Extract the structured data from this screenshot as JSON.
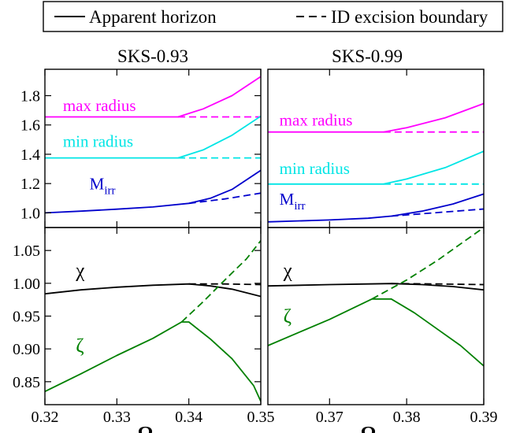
{
  "legend": {
    "solid_label": "Apparent horizon",
    "dashed_label": "ID excision boundary"
  },
  "chart_data": [
    {
      "type": "line",
      "panel": "top-left",
      "title": "SKS-0.93",
      "xlim": [
        0.32,
        0.35
      ],
      "ylim": [
        0.9,
        1.98
      ],
      "yticks": [
        1.0,
        1.2,
        1.4,
        1.6,
        1.8
      ],
      "ytick_labels": [
        "1.0",
        "1.2",
        "1.4",
        "1.6",
        "1.8"
      ],
      "xticks": [
        0.32,
        0.33,
        0.34,
        0.35
      ],
      "grid": false,
      "series": [
        {
          "name": "max radius",
          "color": "#ff00ff",
          "style": "solid",
          "x": [
            0.32,
            0.3385,
            0.342,
            0.346,
            0.35
          ],
          "y": [
            1.655,
            1.655,
            1.71,
            1.8,
            1.93
          ]
        },
        {
          "name": "max radius",
          "color": "#ff00ff",
          "style": "dashed",
          "x": [
            0.3385,
            0.35
          ],
          "y": [
            1.655,
            1.655
          ]
        },
        {
          "name": "min radius",
          "color": "#00e5e5",
          "style": "solid",
          "x": [
            0.32,
            0.3385,
            0.342,
            0.346,
            0.35
          ],
          "y": [
            1.375,
            1.375,
            1.43,
            1.53,
            1.66
          ]
        },
        {
          "name": "min radius",
          "color": "#00e5e5",
          "style": "dashed",
          "x": [
            0.3385,
            0.35
          ],
          "y": [
            1.375,
            1.375
          ]
        },
        {
          "name": "M_irr",
          "color": "#0000cc",
          "style": "solid",
          "x": [
            0.32,
            0.325,
            0.33,
            0.335,
            0.34,
            0.343,
            0.346,
            0.35
          ],
          "y": [
            1.0,
            1.012,
            1.025,
            1.04,
            1.065,
            1.1,
            1.16,
            1.29
          ]
        },
        {
          "name": "M_irr",
          "color": "#0000cc",
          "style": "dashed",
          "x": [
            0.34,
            0.345,
            0.35
          ],
          "y": [
            1.065,
            1.095,
            1.135
          ]
        }
      ],
      "labels": [
        {
          "text": "max radius",
          "color": "#ff00ff",
          "x": 0.3225,
          "y": 1.695
        },
        {
          "text": "min radius",
          "color": "#00e5e5",
          "x": 0.3225,
          "y": 1.45
        },
        {
          "text": "M",
          "sub": "irr",
          "color": "#0000cc",
          "x": 0.3262,
          "y": 1.16
        }
      ]
    },
    {
      "type": "line",
      "panel": "top-right",
      "title": "SKS-0.99",
      "xlim": [
        0.362,
        0.39
      ],
      "ylim": [
        0.84,
        1.95
      ],
      "xticks": [
        0.37,
        0.38,
        0.39
      ],
      "grid": false,
      "series": [
        {
          "name": "max radius",
          "color": "#ff00ff",
          "style": "solid",
          "x": [
            0.362,
            0.377,
            0.38,
            0.385,
            0.39
          ],
          "y": [
            1.51,
            1.51,
            1.54,
            1.61,
            1.71
          ]
        },
        {
          "name": "max radius",
          "color": "#ff00ff",
          "style": "dashed",
          "x": [
            0.377,
            0.39
          ],
          "y": [
            1.51,
            1.51
          ]
        },
        {
          "name": "min radius",
          "color": "#00e5e5",
          "style": "solid",
          "x": [
            0.362,
            0.377,
            0.38,
            0.385,
            0.39
          ],
          "y": [
            1.145,
            1.145,
            1.18,
            1.26,
            1.375
          ]
        },
        {
          "name": "min radius",
          "color": "#00e5e5",
          "style": "dashed",
          "x": [
            0.377,
            0.39
          ],
          "y": [
            1.145,
            1.145
          ]
        },
        {
          "name": "M_irr",
          "color": "#0000cc",
          "style": "solid",
          "x": [
            0.362,
            0.37,
            0.375,
            0.378,
            0.382,
            0.386,
            0.39
          ],
          "y": [
            0.88,
            0.893,
            0.905,
            0.92,
            0.955,
            1.005,
            1.075
          ]
        },
        {
          "name": "M_irr",
          "color": "#0000cc",
          "style": "dashed",
          "x": [
            0.378,
            0.384,
            0.39
          ],
          "y": [
            0.92,
            0.945,
            0.97
          ]
        }
      ],
      "labels": [
        {
          "text": "max radius",
          "color": "#ff00ff",
          "x": 0.3635,
          "y": 1.555
        },
        {
          "text": "min radius",
          "color": "#00e5e5",
          "x": 0.3635,
          "y": 1.215
        },
        {
          "text": "M",
          "sub": "irr",
          "color": "#0000cc",
          "x": 0.3635,
          "y": 1.0
        }
      ]
    },
    {
      "type": "line",
      "panel": "bottom-left",
      "xlim": [
        0.32,
        0.35
      ],
      "ylim": [
        0.815,
        1.085
      ],
      "yticks": [
        0.85,
        0.9,
        0.95,
        1.0,
        1.05
      ],
      "ytick_labels": [
        "0.85",
        "0.90",
        "0.95",
        "1.00",
        "1.05"
      ],
      "xticks": [
        0.32,
        0.33,
        0.34,
        0.35
      ],
      "xtick_labels": [
        "0.32",
        "0.33",
        "0.34",
        "0.35"
      ],
      "xlabel": "Ω",
      "xlabel_sub": "r",
      "grid": false,
      "series": [
        {
          "name": "χ",
          "color": "#000000",
          "style": "solid",
          "x": [
            0.32,
            0.325,
            0.33,
            0.335,
            0.34,
            0.343,
            0.346,
            0.35
          ],
          "y": [
            0.984,
            0.99,
            0.994,
            0.997,
            0.999,
            0.996,
            0.991,
            0.98
          ]
        },
        {
          "name": "χ",
          "color": "#000000",
          "style": "dashed",
          "x": [
            0.34,
            0.345,
            0.35
          ],
          "y": [
            0.999,
            0.999,
            0.998
          ]
        },
        {
          "name": "ζ",
          "color": "#008000",
          "style": "solid",
          "x": [
            0.32,
            0.325,
            0.33,
            0.335,
            0.339,
            0.34,
            0.343,
            0.346,
            0.349,
            0.35
          ],
          "y": [
            0.835,
            0.862,
            0.89,
            0.916,
            0.941,
            0.941,
            0.915,
            0.885,
            0.844,
            0.82
          ]
        },
        {
          "name": "ζ",
          "color": "#008000",
          "style": "dashed",
          "x": [
            0.339,
            0.342,
            0.345,
            0.348,
            0.35
          ],
          "y": [
            0.941,
            0.972,
            1.005,
            1.037,
            1.065
          ]
        }
      ],
      "labels": [
        {
          "text": "χ",
          "color": "#000000",
          "x": 0.3243,
          "y": 1.01
        },
        {
          "text": "ζ",
          "color": "#008000",
          "x": 0.3243,
          "y": 0.895
        }
      ]
    },
    {
      "type": "line",
      "panel": "bottom-right",
      "xlim": [
        0.362,
        0.39
      ],
      "ylim": [
        0.815,
        1.085
      ],
      "xticks": [
        0.37,
        0.38,
        0.39
      ],
      "xtick_labels": [
        "0.37",
        "0.38",
        "0.39"
      ],
      "xlabel": "Ω",
      "xlabel_sub": "r",
      "grid": false,
      "series": [
        {
          "name": "χ",
          "color": "#000000",
          "style": "solid",
          "x": [
            0.362,
            0.37,
            0.375,
            0.378,
            0.382,
            0.386,
            0.39
          ],
          "y": [
            0.996,
            0.998,
            0.999,
            0.9995,
            0.998,
            0.995,
            0.99
          ]
        },
        {
          "name": "χ",
          "color": "#000000",
          "style": "dashed",
          "x": [
            0.378,
            0.384,
            0.39
          ],
          "y": [
            0.9995,
            0.999,
            0.998
          ]
        },
        {
          "name": "ζ",
          "color": "#008000",
          "style": "solid",
          "x": [
            0.362,
            0.366,
            0.37,
            0.3755,
            0.378,
            0.381,
            0.384,
            0.387,
            0.39
          ],
          "y": [
            0.905,
            0.925,
            0.945,
            0.976,
            0.976,
            0.955,
            0.93,
            0.905,
            0.874
          ]
        },
        {
          "name": "ζ",
          "color": "#008000",
          "style": "dashed",
          "x": [
            0.3755,
            0.38,
            0.384,
            0.387,
            0.39
          ],
          "y": [
            0.976,
            1.005,
            1.035,
            1.06,
            1.085
          ]
        }
      ],
      "labels": [
        {
          "text": "χ",
          "color": "#000000",
          "x": 0.364,
          "y": 1.01
        },
        {
          "text": "ζ",
          "color": "#008000",
          "x": 0.364,
          "y": 0.94
        }
      ]
    }
  ]
}
